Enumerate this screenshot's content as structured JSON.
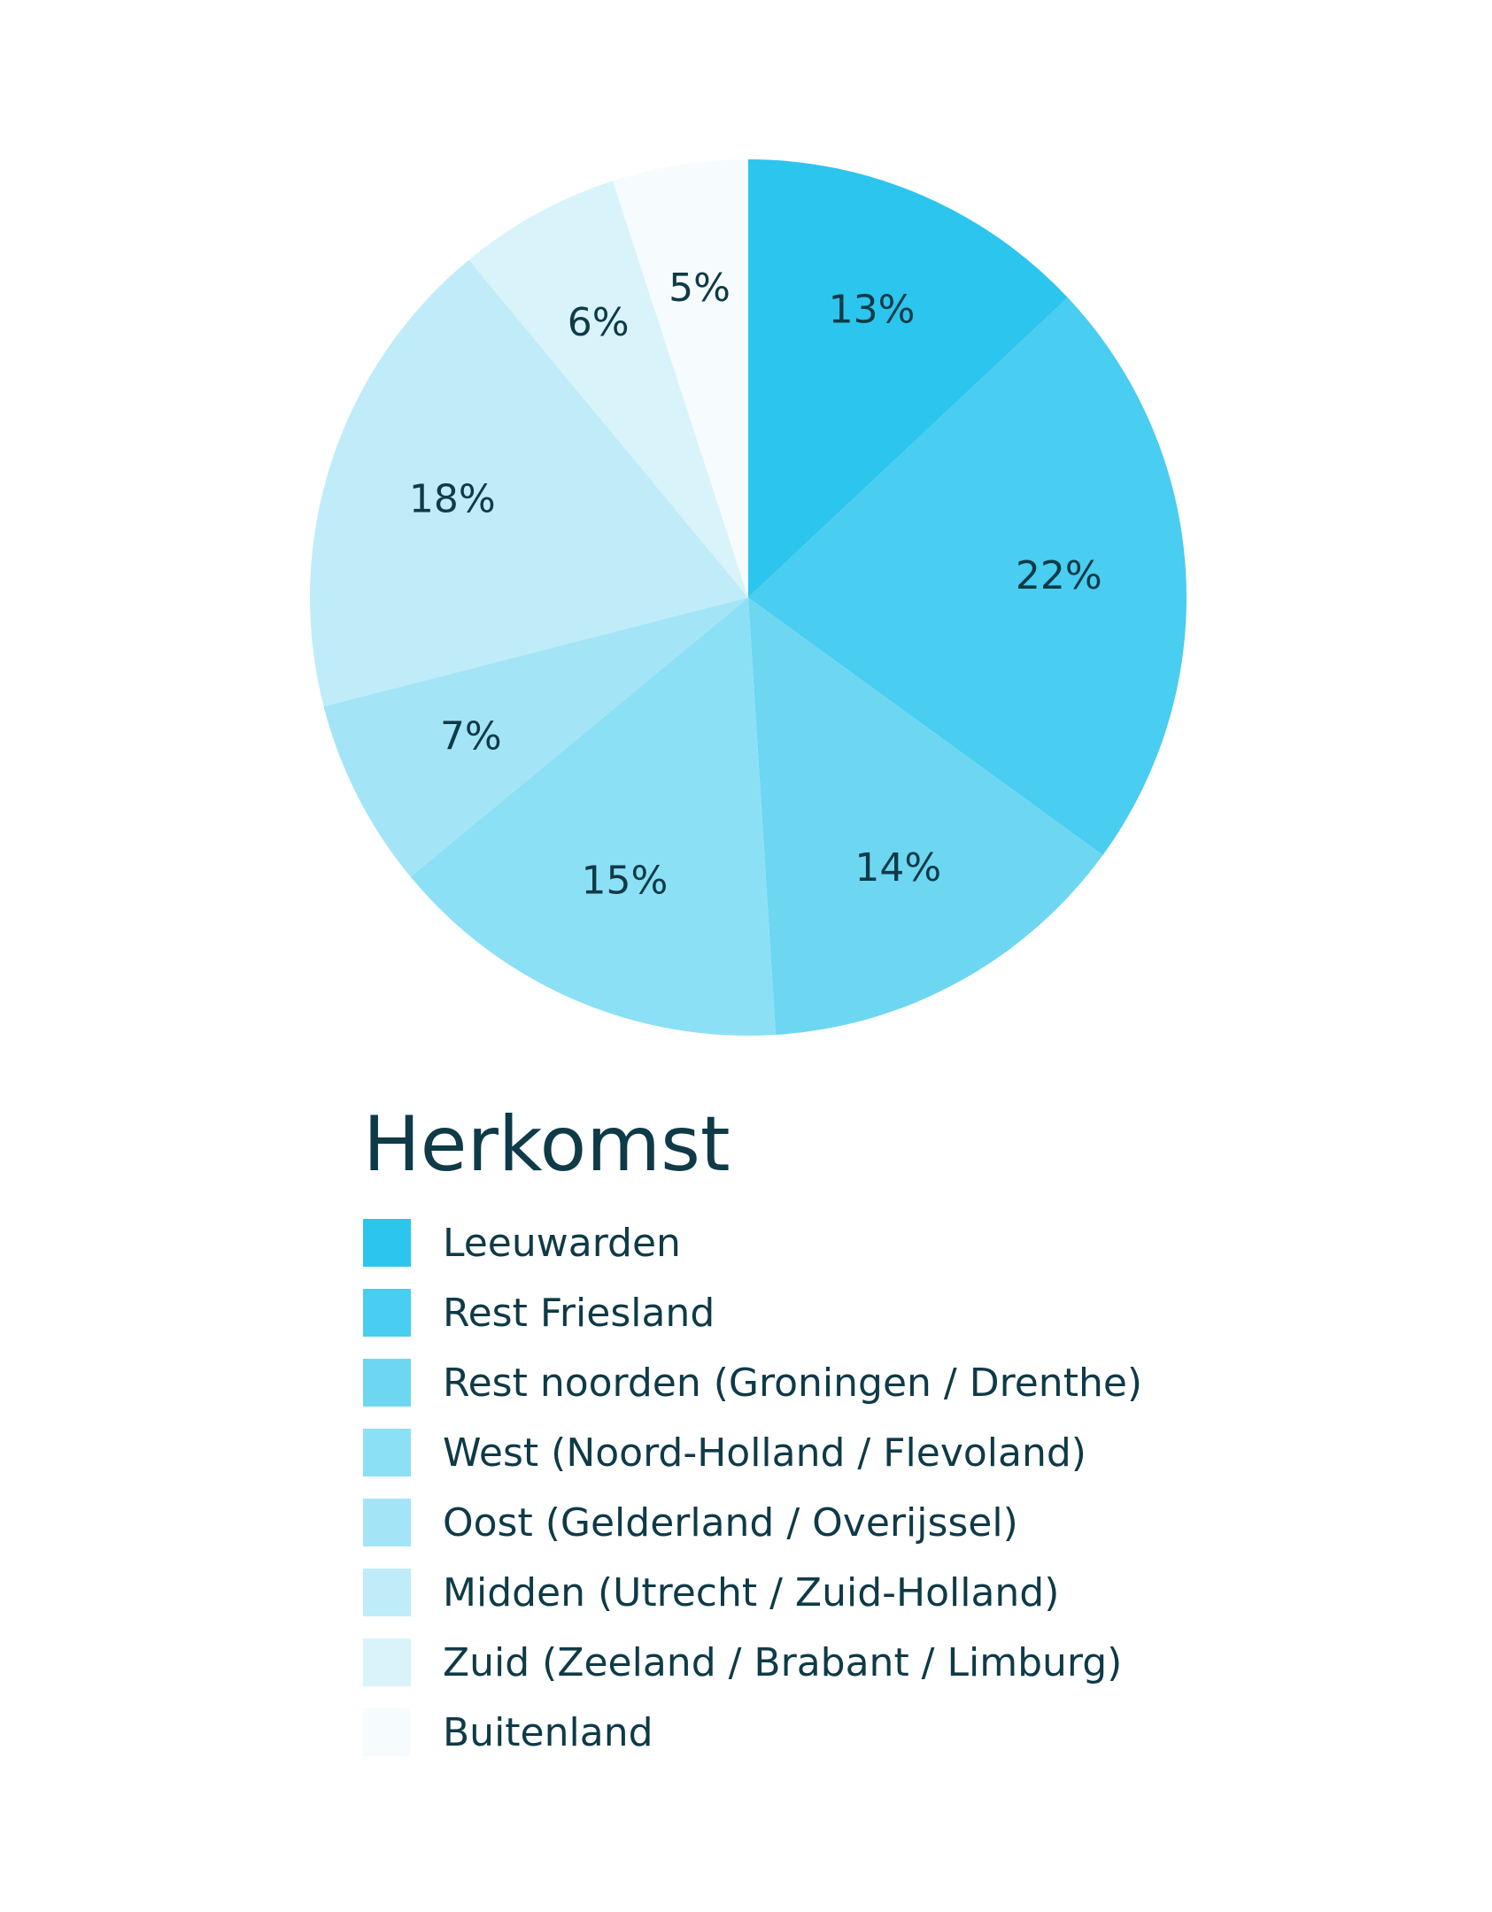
{
  "chart_data": {
    "type": "pie",
    "title": "",
    "legend_title": "Herkomst",
    "legend_position": "bottom",
    "slices": [
      {
        "name": "Leeuwarden",
        "value": 13,
        "label": "13%",
        "color": "#2cc5ed"
      },
      {
        "name": "Rest Friesland",
        "value": 22,
        "label": "22%",
        "color": "#49cdf0"
      },
      {
        "name": "Rest noorden (Groningen / Drenthe)",
        "value": 14,
        "label": "14%",
        "color": "#6dd7f2"
      },
      {
        "name": "West (Noord-Holland / Flevoland)",
        "value": 15,
        "label": "15%",
        "color": "#8ce0f5"
      },
      {
        "name": "Oost (Gelderland / Overijssel)",
        "value": 7,
        "label": "7%",
        "color": "#a3e5f6"
      },
      {
        "name": "Midden (Utrecht / Zuid-Holland)",
        "value": 18,
        "label": "18%",
        "color": "#bfecf8"
      },
      {
        "name": "Zuid (Zeeland / Brabant / Limburg)",
        "value": 6,
        "label": "6%",
        "color": "#d9f3fb"
      },
      {
        "name": "Buitenland",
        "value": 5,
        "label": "5%",
        "color": "#f6fcfe"
      }
    ]
  }
}
